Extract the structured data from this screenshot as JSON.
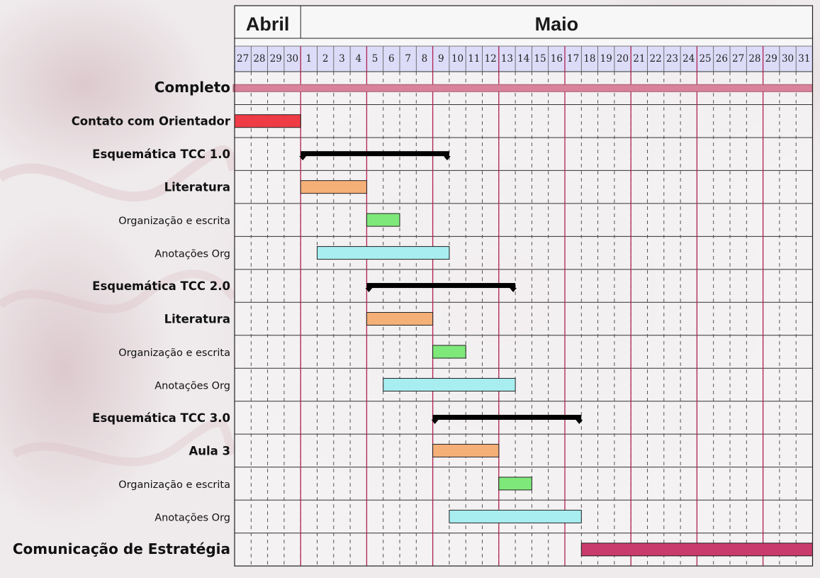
{
  "colors": {
    "month_divider": "#b0234f",
    "header_row_bg": "#dcdcf8",
    "complete": "#d9829b",
    "contact": "#ef3b45",
    "group": "#000000",
    "literature": "#f5b078",
    "writing": "#7fe87a",
    "notes": "#a8eef0",
    "strategy": "#c83b6c"
  },
  "chart_data": {
    "type": "gantt",
    "months": [
      {
        "name": "Abril",
        "first_day_index": 0,
        "last_day_index": 3
      },
      {
        "name": "Maio",
        "first_day_index": 4,
        "last_day_index": 34
      }
    ],
    "days": [
      "27",
      "28",
      "29",
      "30",
      "1",
      "2",
      "3",
      "4",
      "5",
      "6",
      "7",
      "8",
      "9",
      "10",
      "11",
      "12",
      "13",
      "14",
      "15",
      "16",
      "17",
      "18",
      "19",
      "20",
      "21",
      "22",
      "23",
      "24",
      "25",
      "26",
      "27",
      "28",
      "29",
      "30",
      "31"
    ],
    "week_start_day_indices": [
      4,
      8,
      12,
      16,
      20,
      24,
      28,
      32
    ],
    "tasks": [
      {
        "label": "Completo",
        "style": "big",
        "kind": "complete",
        "start": "27 Abr",
        "end": "31 Mai",
        "start_index": 0,
        "end_index": 35
      },
      {
        "label": "Contato com Orientador",
        "style": "bold",
        "kind": "contact",
        "start": "27 Abr",
        "end": "30 Abr",
        "start_index": 0,
        "end_index": 4
      },
      {
        "label": "Esquemática TCC 1.0",
        "style": "bold",
        "kind": "group",
        "start": "1 Mai",
        "end": "9 Mai",
        "start_index": 4,
        "end_index": 13
      },
      {
        "label": "Literatura",
        "style": "bold",
        "kind": "literature",
        "start": "1 Mai",
        "end": "4 Mai",
        "start_index": 4,
        "end_index": 8
      },
      {
        "label": "Organização e escrita",
        "style": "normal",
        "kind": "writing",
        "start": "5 Mai",
        "end": "6 Mai",
        "start_index": 8,
        "end_index": 10
      },
      {
        "label": "Anotações Org",
        "style": "normal",
        "kind": "notes",
        "start": "2 Mai",
        "end": "9 Mai",
        "start_index": 5,
        "end_index": 13
      },
      {
        "label": "Esquemática TCC 2.0",
        "style": "bold",
        "kind": "group",
        "start": "5 Mai",
        "end": "13 Mai",
        "start_index": 8,
        "end_index": 17
      },
      {
        "label": "Literatura",
        "style": "bold",
        "kind": "literature",
        "start": "5 Mai",
        "end": "8 Mai",
        "start_index": 8,
        "end_index": 12
      },
      {
        "label": "Organização e escrita",
        "style": "normal",
        "kind": "writing",
        "start": "9 Mai",
        "end": "10 Mai",
        "start_index": 12,
        "end_index": 14
      },
      {
        "label": "Anotações Org",
        "style": "normal",
        "kind": "notes",
        "start": "6 Mai",
        "end": "13 Mai",
        "start_index": 9,
        "end_index": 17
      },
      {
        "label": "Esquemática TCC 3.0",
        "style": "bold",
        "kind": "group",
        "start": "9 Mai",
        "end": "17 Mai",
        "start_index": 12,
        "end_index": 21
      },
      {
        "label": "Aula 3",
        "style": "bold",
        "kind": "literature",
        "start": "9 Mai",
        "end": "12 Mai",
        "start_index": 12,
        "end_index": 16
      },
      {
        "label": "Organização e escrita",
        "style": "normal",
        "kind": "writing",
        "start": "13 Mai",
        "end": "14 Mai",
        "start_index": 16,
        "end_index": 18
      },
      {
        "label": "Anotações Org",
        "style": "normal",
        "kind": "notes",
        "start": "10 Mai",
        "end": "17 Mai",
        "start_index": 13,
        "end_index": 21
      },
      {
        "label": "Comunicação de Estratégia",
        "style": "big",
        "kind": "strategy",
        "start": "18 Mai",
        "end": "31 Mai",
        "start_index": 21,
        "end_index": 35
      }
    ]
  }
}
